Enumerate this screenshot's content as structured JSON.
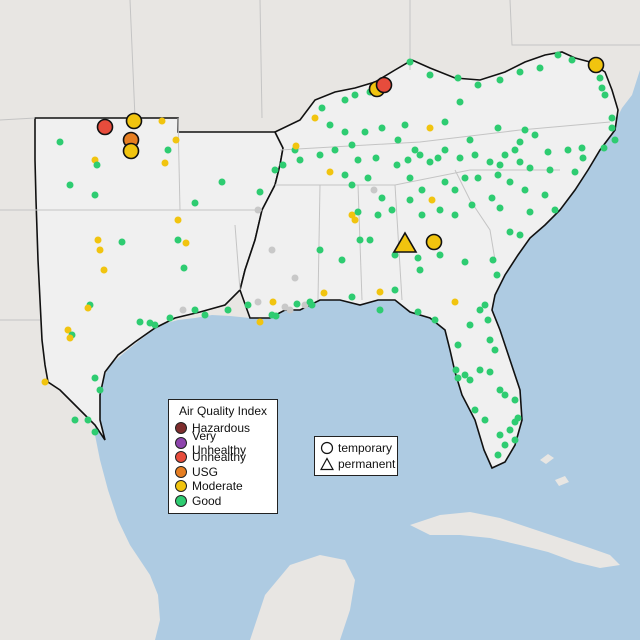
{
  "legend": {
    "title": "Air Quality Index",
    "categories": [
      {
        "label": "Hazardous",
        "color": "#7e2d2d"
      },
      {
        "label": "Very Unhealthy",
        "color": "#8e44ad"
      },
      {
        "label": "Unhealthy",
        "color": "#e74c3c"
      },
      {
        "label": "USG",
        "color": "#e67e22"
      },
      {
        "label": "Moderate",
        "color": "#f1c40f"
      },
      {
        "label": "Good",
        "color": "#2ecc71"
      }
    ]
  },
  "shape_legend": {
    "temporary": "temporary",
    "permanent": "permanent"
  },
  "colors": {
    "water": "#aecbe2",
    "land": "#e8e6e3",
    "region": "#f0f0f0",
    "no_data": "#c8c8c8"
  }
}
